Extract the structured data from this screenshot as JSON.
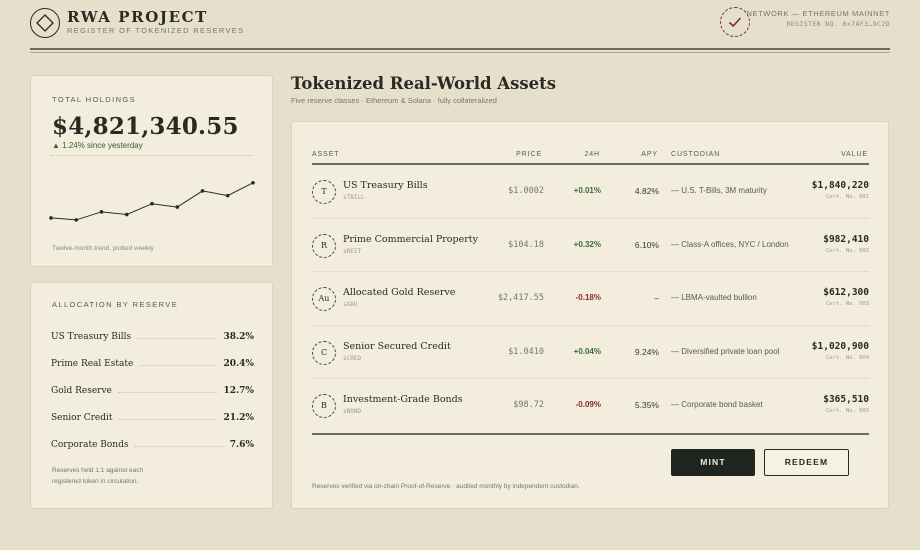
{
  "header": {
    "brand": "RWA PROJECT",
    "brand_sub": "REGISTER OF TOKENIZED RESERVES",
    "network": "NETWORK — ETHEREUM MAINNET",
    "register_no": "REGISTER NO. 0x7AF3…9C2D",
    "logo_icon": "diamond-icon",
    "seal_icon": "checkmark-seal-icon"
  },
  "holdings": {
    "label": "TOTAL HOLDINGS",
    "value": "$4,821,340.55",
    "change": "▲ 1.24% since yesterday",
    "trend_caption": "Twelve-month trend, plotted weekly"
  },
  "chart_data": {
    "type": "line",
    "title": "",
    "xlabel": "",
    "ylabel": "",
    "values": [
      12,
      9,
      21,
      17,
      33,
      28,
      52,
      45,
      64
    ],
    "ylim": [
      0,
      80
    ],
    "grid": false
  },
  "allocation": {
    "label": "ALLOCATION BY RESERVE",
    "items": [
      {
        "name": "US Treasury Bills",
        "value": "38.2%"
      },
      {
        "name": "Prime Real Estate",
        "value": "20.4%"
      },
      {
        "name": "Gold Reserve",
        "value": "12.7%"
      },
      {
        "name": "Senior Credit",
        "value": "21.2%"
      },
      {
        "name": "Corporate Bonds",
        "value": "7.6%"
      }
    ],
    "note": "Reserves held 1:1 against each registered token in circulation."
  },
  "assets": {
    "title": "Tokenized Real-World Assets",
    "subtitle": "Five reserve classes · Ethereum & Solana · fully collateralized",
    "columns": {
      "asset": "ASSET",
      "price": "PRICE",
      "change": "24H",
      "apy": "APY",
      "custodian": "CUSTODIAN",
      "value": "VALUE"
    },
    "rows": [
      {
        "symbol": "T",
        "name": "US Treasury Bills",
        "ticker": "sTBILL",
        "price": "$1.0002",
        "change": "+0.01%",
        "direction": "up",
        "apy": "4.82%",
        "custodian": "— U.S. T-Bills, 3M maturity",
        "value": "$1,840,220",
        "cert": "Cert. No. 001"
      },
      {
        "symbol": "R",
        "name": "Prime Commercial Property",
        "ticker": "sREIT",
        "price": "$104.18",
        "change": "+0.32%",
        "direction": "up",
        "apy": "6.10%",
        "custodian": "— Class-A offices, NYC / London",
        "value": "$982,410",
        "cert": "Cert. No. 002"
      },
      {
        "symbol": "Au",
        "name": "Allocated Gold Reserve",
        "ticker": "sXAU",
        "price": "$2,417.55",
        "change": "-0.18%",
        "direction": "down",
        "apy": "–",
        "custodian": "— LBMA-vaulted bullion",
        "value": "$612,300",
        "cert": "Cert. No. 003"
      },
      {
        "symbol": "C",
        "name": "Senior Secured Credit",
        "ticker": "sCRED",
        "price": "$1.0410",
        "change": "+0.04%",
        "direction": "up",
        "apy": "9.24%",
        "custodian": "— Diversified private loan pool",
        "value": "$1,020,900",
        "cert": "Cert. No. 004"
      },
      {
        "symbol": "B",
        "name": "Investment-Grade Bonds",
        "ticker": "sBOND",
        "price": "$98.72",
        "change": "-0.09%",
        "direction": "down",
        "apy": "5.35%",
        "custodian": "— Corporate bond basket",
        "value": "$365,510",
        "cert": "Cert. No. 005"
      }
    ],
    "mint_label": "MINT",
    "redeem_label": "REDEEM",
    "footer": "Reserves verified via on-chain Proof-of-Reserve · audited monthly by independent custodian."
  }
}
